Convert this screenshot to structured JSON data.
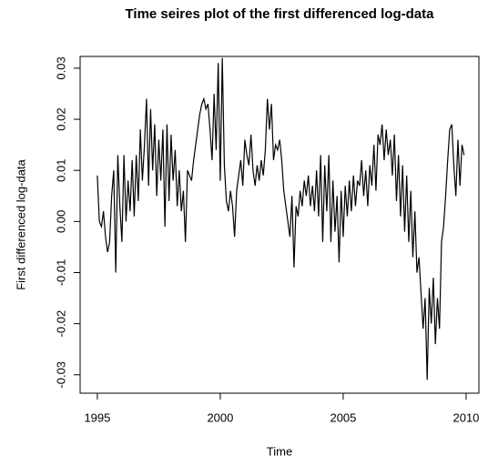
{
  "chart_data": {
    "type": "line",
    "title": "Time seires plot of the first differenced log-data",
    "x_label": "Time",
    "y_label": "First differenced log-data",
    "color": "#000000",
    "xlim": [
      1994.3,
      2010.52
    ],
    "ylim": [
      -0.0336,
      0.0323
    ],
    "xticks": [
      1995,
      2000,
      2005,
      2010
    ],
    "yticks": [
      -0.03,
      -0.02,
      -0.01,
      {
        "value": 0,
        "label": "0.00"
      },
      0.01,
      0.02,
      0.03
    ],
    "x": [
      1995,
      1995.083,
      1995.167,
      1995.25,
      1995.333,
      1995.417,
      1995.5,
      1995.583,
      1995.667,
      1995.75,
      1995.833,
      1995.917,
      1996,
      1996.083,
      1996.167,
      1996.25,
      1996.333,
      1996.417,
      1996.5,
      1996.583,
      1996.667,
      1996.75,
      1996.833,
      1996.917,
      1997,
      1997.083,
      1997.167,
      1997.25,
      1997.333,
      1997.417,
      1997.5,
      1997.583,
      1997.667,
      1997.75,
      1997.833,
      1997.917,
      1998,
      1998.083,
      1998.167,
      1998.25,
      1998.333,
      1998.417,
      1998.5,
      1998.583,
      1998.667,
      1998.75,
      1998.833,
      1998.917,
      1999,
      1999.083,
      1999.167,
      1999.25,
      1999.333,
      1999.417,
      1999.5,
      1999.583,
      1999.667,
      1999.75,
      1999.833,
      1999.917,
      2000,
      2000.083,
      2000.167,
      2000.25,
      2000.333,
      2000.417,
      2000.5,
      2000.583,
      2000.667,
      2000.75,
      2000.833,
      2000.917,
      2001,
      2001.083,
      2001.167,
      2001.25,
      2001.333,
      2001.417,
      2001.5,
      2001.583,
      2001.667,
      2001.75,
      2001.833,
      2001.917,
      2002,
      2002.083,
      2002.167,
      2002.25,
      2002.333,
      2002.417,
      2002.5,
      2002.583,
      2002.667,
      2002.75,
      2002.833,
      2002.917,
      2003,
      2003.083,
      2003.167,
      2003.25,
      2003.333,
      2003.417,
      2003.5,
      2003.583,
      2003.667,
      2003.75,
      2003.833,
      2003.917,
      2004,
      2004.083,
      2004.167,
      2004.25,
      2004.333,
      2004.417,
      2004.5,
      2004.583,
      2004.667,
      2004.75,
      2004.833,
      2004.917,
      2005,
      2005.083,
      2005.167,
      2005.25,
      2005.333,
      2005.417,
      2005.5,
      2005.583,
      2005.667,
      2005.75,
      2005.833,
      2005.917,
      2006,
      2006.083,
      2006.167,
      2006.25,
      2006.333,
      2006.417,
      2006.5,
      2006.583,
      2006.667,
      2006.75,
      2006.833,
      2006.917,
      2007,
      2007.083,
      2007.167,
      2007.25,
      2007.333,
      2007.417,
      2007.5,
      2007.583,
      2007.667,
      2007.75,
      2007.833,
      2007.917,
      2008,
      2008.083,
      2008.167,
      2008.25,
      2008.333,
      2008.417,
      2008.5,
      2008.583,
      2008.667,
      2008.75,
      2008.833,
      2008.917,
      2009,
      2009.083,
      2009.167,
      2009.25,
      2009.333,
      2009.417,
      2009.5,
      2009.583,
      2009.667,
      2009.75,
      2009.833,
      2009.917
    ],
    "values": [
      0.009,
      0.0,
      -0.001,
      0.002,
      -0.003,
      -0.006,
      -0.004,
      0.005,
      0.01,
      -0.01,
      0.013,
      0.003,
      -0.004,
      0.013,
      0.0,
      0.008,
      0.002,
      0.012,
      0.001,
      0.013,
      0.004,
      0.018,
      0.008,
      0.015,
      0.024,
      0.007,
      0.022,
      0.01,
      0.019,
      0.005,
      0.016,
      0.008,
      0.018,
      -0.001,
      0.019,
      0.004,
      0.017,
      0.008,
      0.014,
      0.003,
      0.01,
      0.002,
      0.006,
      -0.004,
      0.01,
      0.009,
      0.008,
      0.012,
      0.015,
      0.018,
      0.021,
      0.023,
      0.024,
      0.022,
      0.023,
      0.018,
      0.012,
      0.025,
      0.014,
      0.031,
      0.008,
      0.032,
      0.011,
      0.004,
      0.002,
      0.006,
      0.003,
      -0.003,
      0.006,
      0.009,
      0.012,
      0.007,
      0.016,
      0.013,
      0.011,
      0.017,
      0.01,
      0.007,
      0.011,
      0.008,
      0.012,
      0.009,
      0.014,
      0.024,
      0.018,
      0.023,
      0.012,
      0.015,
      0.014,
      0.016,
      0.012,
      0.006,
      0.003,
      0.0,
      -0.003,
      0.005,
      -0.009,
      0.003,
      0.001,
      0.006,
      0.003,
      0.008,
      0.005,
      0.009,
      0.003,
      0.007,
      0.002,
      0.01,
      0.001,
      0.013,
      -0.004,
      0.011,
      0.002,
      0.013,
      -0.004,
      0.008,
      -0.002,
      0.005,
      -0.008,
      0.006,
      -0.003,
      0.007,
      0.001,
      0.008,
      0.002,
      0.009,
      0.003,
      0.008,
      0.007,
      0.012,
      0.005,
      0.01,
      0.003,
      0.011,
      0.007,
      0.015,
      0.006,
      0.017,
      0.015,
      0.019,
      0.012,
      0.018,
      0.013,
      0.016,
      0.009,
      0.017,
      0.004,
      0.013,
      0.001,
      0.011,
      -0.002,
      0.009,
      -0.004,
      0.006,
      -0.007,
      0.002,
      -0.01,
      -0.007,
      -0.014,
      -0.021,
      -0.015,
      -0.031,
      -0.013,
      -0.02,
      -0.011,
      -0.024,
      -0.015,
      -0.021,
      -0.004,
      -0.001,
      0.005,
      0.012,
      0.018,
      0.019,
      0.011,
      0.005,
      0.016,
      0.007,
      0.015,
      0.013
    ]
  }
}
